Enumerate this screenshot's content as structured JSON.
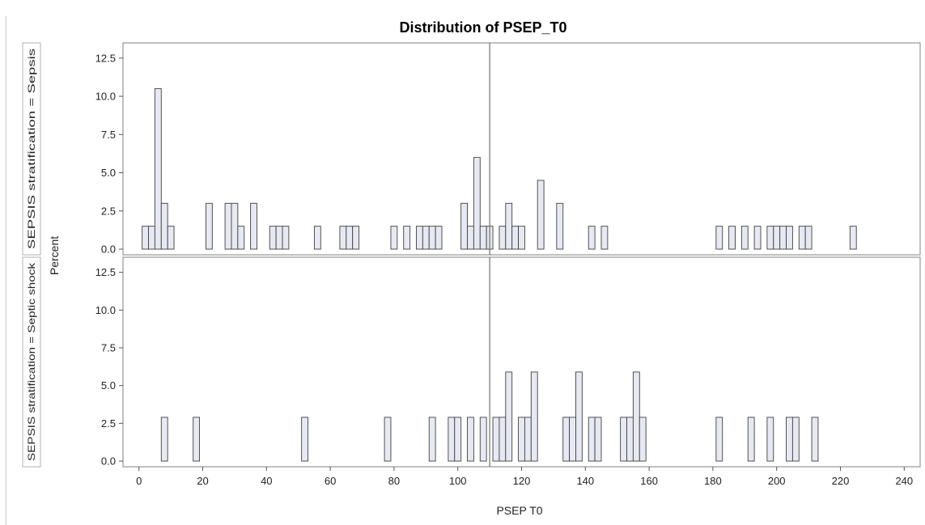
{
  "chart_data": {
    "type": "histogram",
    "title": "Distribution of PSEP_T0",
    "xlabel": "PSEP T0",
    "ylabel": "Percent",
    "xlim": [
      -5,
      245
    ],
    "ylim": [
      0,
      13.125
    ],
    "xticks": [
      0,
      20,
      40,
      60,
      80,
      100,
      120,
      140,
      160,
      180,
      200,
      220,
      240
    ],
    "yticks": [
      0.0,
      2.5,
      5.0,
      7.5,
      10.0,
      12.5
    ],
    "bin_width": 2,
    "reference_line_x": 110,
    "grid": false,
    "panels": [
      {
        "label": "SEPSIS stratification = Sepsis",
        "bars": [
          {
            "x": 2,
            "y": 1.5
          },
          {
            "x": 4,
            "y": 1.5
          },
          {
            "x": 6,
            "y": 10.5
          },
          {
            "x": 8,
            "y": 3.0
          },
          {
            "x": 10,
            "y": 1.5
          },
          {
            "x": 22,
            "y": 3.0
          },
          {
            "x": 28,
            "y": 3.0
          },
          {
            "x": 30,
            "y": 3.0
          },
          {
            "x": 32,
            "y": 1.5
          },
          {
            "x": 36,
            "y": 3.0
          },
          {
            "x": 42,
            "y": 1.5
          },
          {
            "x": 44,
            "y": 1.5
          },
          {
            "x": 46,
            "y": 1.5
          },
          {
            "x": 56,
            "y": 1.5
          },
          {
            "x": 64,
            "y": 1.5
          },
          {
            "x": 66,
            "y": 1.5
          },
          {
            "x": 68,
            "y": 1.5
          },
          {
            "x": 80,
            "y": 1.5
          },
          {
            "x": 84,
            "y": 1.5
          },
          {
            "x": 88,
            "y": 1.5
          },
          {
            "x": 90,
            "y": 1.5
          },
          {
            "x": 92,
            "y": 1.5
          },
          {
            "x": 94,
            "y": 1.5
          },
          {
            "x": 102,
            "y": 3.0
          },
          {
            "x": 104,
            "y": 1.5
          },
          {
            "x": 106,
            "y": 6.0
          },
          {
            "x": 108,
            "y": 1.5
          },
          {
            "x": 110,
            "y": 1.5
          },
          {
            "x": 114,
            "y": 1.5
          },
          {
            "x": 116,
            "y": 3.0
          },
          {
            "x": 118,
            "y": 1.5
          },
          {
            "x": 120,
            "y": 1.5
          },
          {
            "x": 126,
            "y": 4.5
          },
          {
            "x": 132,
            "y": 3.0
          },
          {
            "x": 142,
            "y": 1.5
          },
          {
            "x": 146,
            "y": 1.5
          },
          {
            "x": 182,
            "y": 1.5
          },
          {
            "x": 186,
            "y": 1.5
          },
          {
            "x": 190,
            "y": 1.5
          },
          {
            "x": 194,
            "y": 1.5
          },
          {
            "x": 198,
            "y": 1.5
          },
          {
            "x": 200,
            "y": 1.5
          },
          {
            "x": 202,
            "y": 1.5
          },
          {
            "x": 204,
            "y": 1.5
          },
          {
            "x": 208,
            "y": 1.5
          },
          {
            "x": 210,
            "y": 1.5
          },
          {
            "x": 224,
            "y": 1.5
          }
        ]
      },
      {
        "label": "SEPSIS stratification = Septic shock",
        "bars": [
          {
            "x": 8,
            "y": 2.9
          },
          {
            "x": 18,
            "y": 2.9
          },
          {
            "x": 52,
            "y": 2.9
          },
          {
            "x": 78,
            "y": 2.9
          },
          {
            "x": 92,
            "y": 2.9
          },
          {
            "x": 98,
            "y": 2.9
          },
          {
            "x": 100,
            "y": 2.9
          },
          {
            "x": 104,
            "y": 2.9
          },
          {
            "x": 108,
            "y": 2.9
          },
          {
            "x": 112,
            "y": 2.9
          },
          {
            "x": 114,
            "y": 2.9
          },
          {
            "x": 116,
            "y": 5.9
          },
          {
            "x": 120,
            "y": 2.9
          },
          {
            "x": 122,
            "y": 2.9
          },
          {
            "x": 124,
            "y": 5.9
          },
          {
            "x": 134,
            "y": 2.9
          },
          {
            "x": 136,
            "y": 2.9
          },
          {
            "x": 138,
            "y": 5.9
          },
          {
            "x": 142,
            "y": 2.9
          },
          {
            "x": 144,
            "y": 2.9
          },
          {
            "x": 152,
            "y": 2.9
          },
          {
            "x": 154,
            "y": 2.9
          },
          {
            "x": 156,
            "y": 5.9
          },
          {
            "x": 158,
            "y": 2.9
          },
          {
            "x": 182,
            "y": 2.9
          },
          {
            "x": 192,
            "y": 2.9
          },
          {
            "x": 198,
            "y": 2.9
          },
          {
            "x": 204,
            "y": 2.9
          },
          {
            "x": 206,
            "y": 2.9
          },
          {
            "x": 212,
            "y": 2.9
          }
        ]
      }
    ],
    "colors": {
      "bar_fill": "#e6e9f2",
      "bar_stroke": "#404040",
      "frame": "#808080",
      "reference_line": "#707070",
      "panel_label_border": "#b0b0b0"
    }
  }
}
